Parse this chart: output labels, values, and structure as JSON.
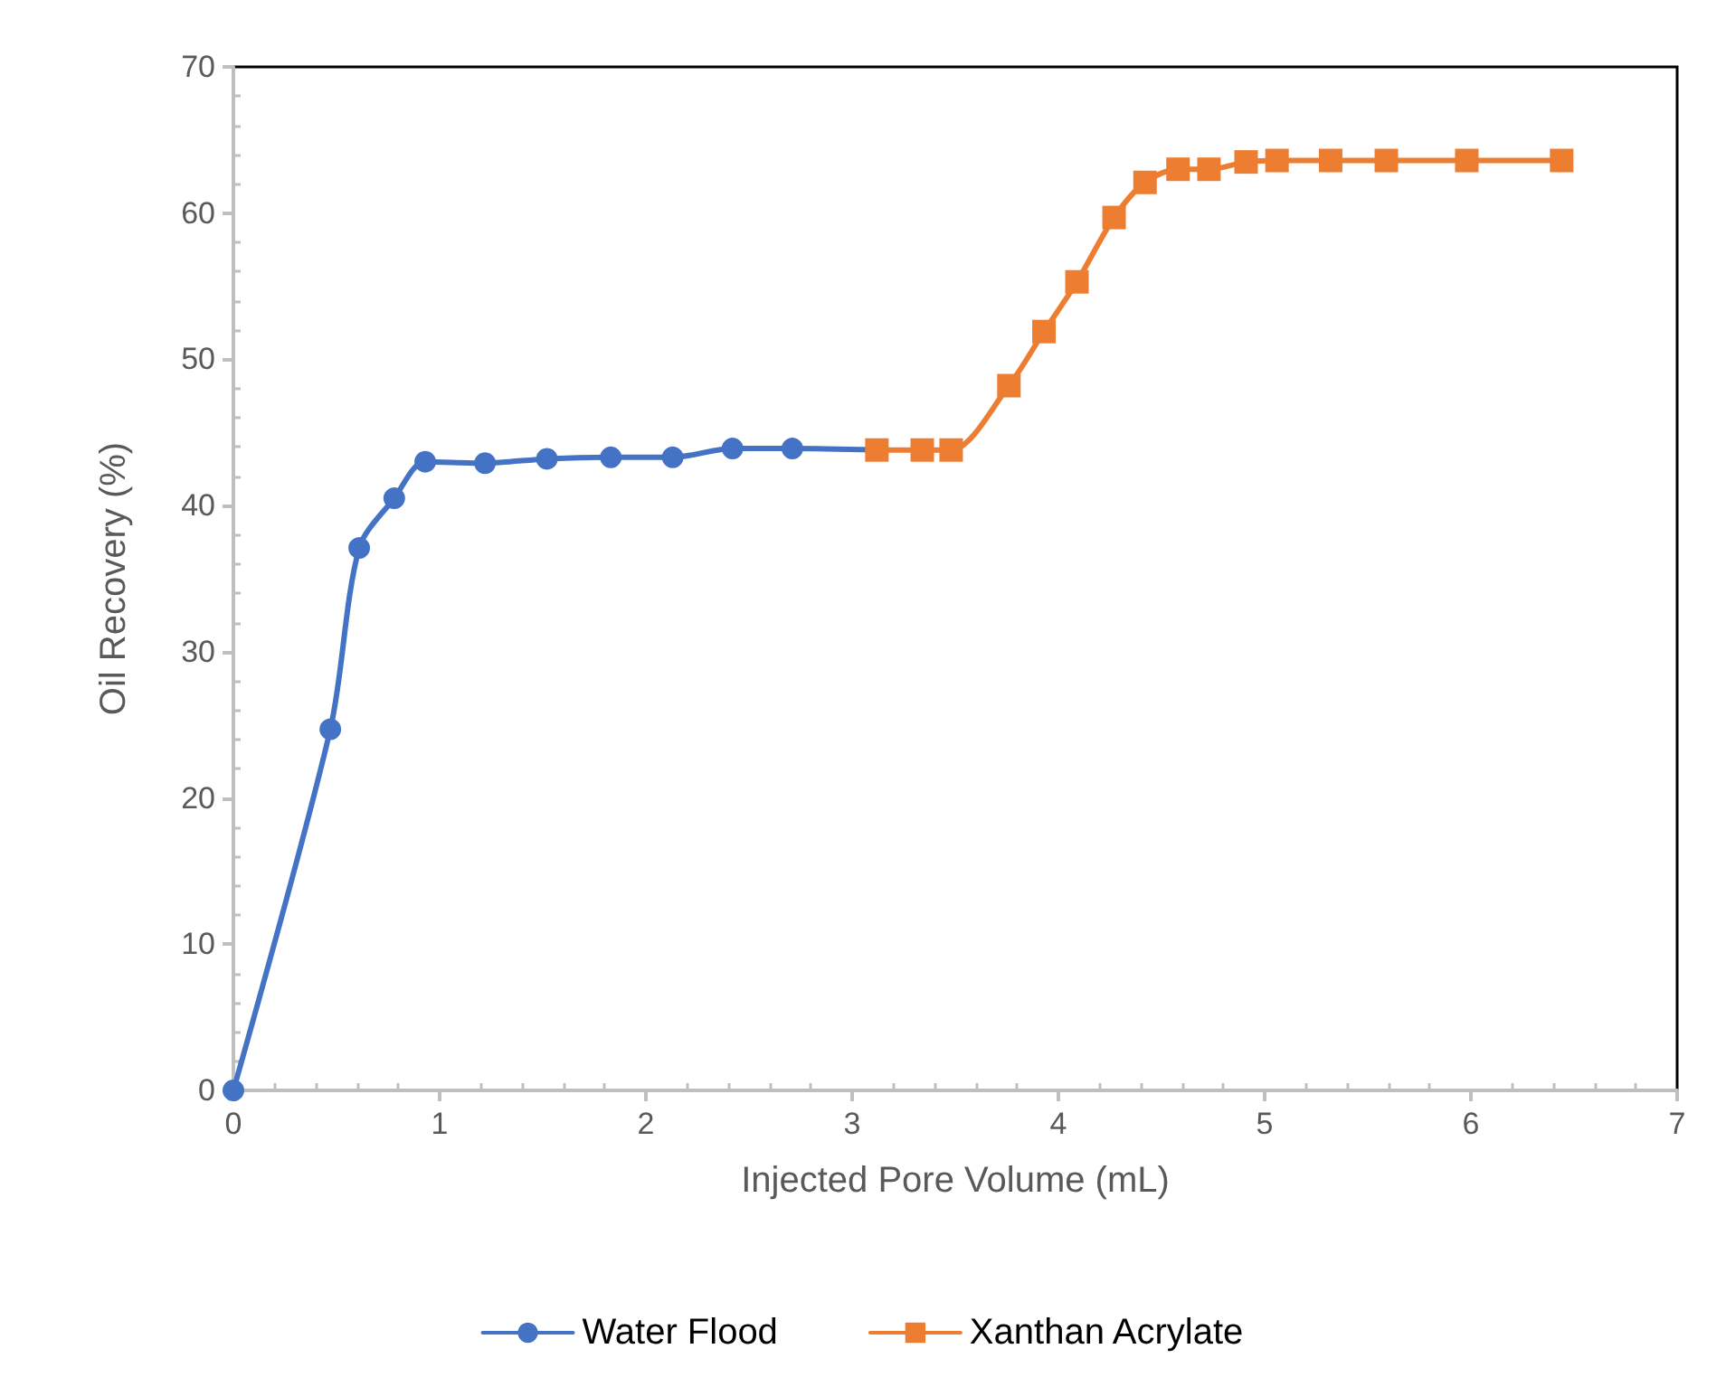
{
  "chart_data": {
    "type": "line",
    "xlabel": "Injected Pore Volume (mL)",
    "ylabel": "Oil Recovery (%)",
    "xlim": [
      0,
      7
    ],
    "xticks": [
      0,
      1,
      2,
      3,
      4,
      5,
      6,
      7
    ],
    "ylim": [
      0,
      70
    ],
    "yticks": [
      0,
      10,
      20,
      30,
      40,
      50,
      60,
      70
    ],
    "grid": false,
    "legend": "bottom",
    "line_style": "solid",
    "series": [
      {
        "name": "Water Flood",
        "color": "#4472c4",
        "marker": "circle",
        "x": [
          0,
          0.47,
          0.61,
          0.78,
          0.93,
          1.22,
          1.52,
          1.83,
          2.13,
          2.42,
          2.71,
          3.12
        ],
        "values": [
          0,
          24.7,
          37.1,
          40.5,
          43.0,
          42.9,
          43.2,
          43.3,
          43.3,
          43.9,
          43.9,
          43.8
        ]
      },
      {
        "name": "Xanthan Acrylate",
        "color": "#ed7d31",
        "marker": "square",
        "x": [
          3.12,
          3.34,
          3.48,
          3.76,
          3.93,
          4.09,
          4.27,
          4.42,
          4.58,
          4.73,
          4.91,
          5.06,
          5.32,
          5.59,
          5.98,
          6.44
        ],
        "values": [
          43.8,
          43.8,
          43.8,
          48.2,
          51.9,
          55.3,
          59.7,
          62.1,
          63.0,
          63.0,
          63.5,
          63.6,
          63.6,
          63.6,
          63.6,
          63.6
        ]
      }
    ]
  }
}
